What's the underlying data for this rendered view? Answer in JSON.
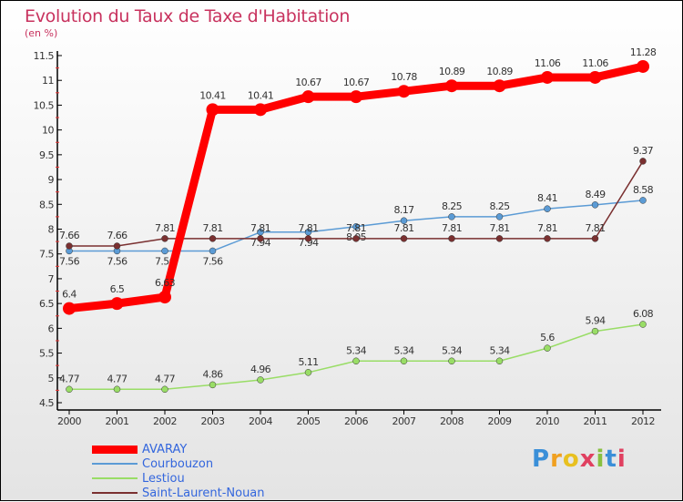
{
  "title": "Evolution du Taux de Taxe d'Habitation",
  "subtitle": "(en %)",
  "logo": "Proxiti",
  "chart_data": {
    "type": "line",
    "title": "Evolution du Taux de Taxe d'Habitation",
    "ylabel": "(en %)",
    "xlabel": "",
    "x": [
      "2000",
      "2001",
      "2002",
      "2003",
      "2004",
      "2005",
      "2006",
      "2007",
      "2008",
      "2009",
      "2010",
      "2011",
      "2012"
    ],
    "ylim": [
      4.5,
      11.5
    ],
    "yticks": [
      "4.5",
      "5",
      "5.5",
      "6",
      "6.5",
      "7",
      "7.5",
      "8",
      "8.5",
      "9",
      "9.5",
      "10",
      "10.5",
      "11",
      "11.5"
    ],
    "legend_position": "bottom-left",
    "series": [
      {
        "name": "AVARAY",
        "color": "#ff0000",
        "values": [
          6.4,
          6.5,
          6.63,
          10.41,
          10.41,
          10.67,
          10.67,
          10.78,
          10.89,
          10.89,
          11.06,
          11.06,
          11.28
        ]
      },
      {
        "name": "Courbouzon",
        "color": "#5b9bd5",
        "values": [
          7.56,
          7.56,
          7.56,
          7.56,
          7.94,
          7.94,
          8.05,
          8.17,
          8.25,
          8.25,
          8.41,
          8.49,
          8.58
        ]
      },
      {
        "name": "Lestiou",
        "color": "#99dd66",
        "values": [
          4.77,
          4.77,
          4.77,
          4.86,
          4.96,
          5.11,
          5.34,
          5.34,
          5.34,
          5.34,
          5.6,
          5.94,
          6.08
        ]
      },
      {
        "name": "Saint-Laurent-Nouan",
        "color": "#7a3030",
        "values": [
          7.66,
          7.66,
          7.81,
          7.81,
          7.81,
          7.81,
          7.81,
          7.81,
          7.81,
          7.81,
          7.81,
          7.81,
          9.37
        ]
      }
    ]
  }
}
